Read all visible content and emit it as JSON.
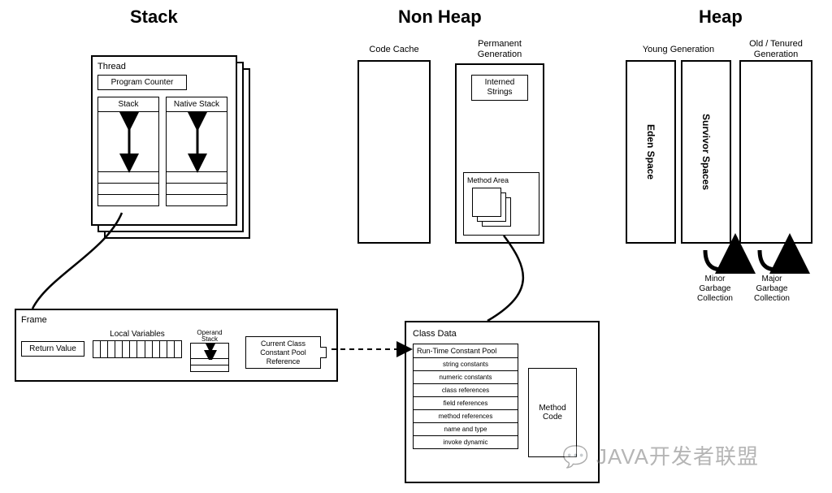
{
  "titles": {
    "stack": "Stack",
    "nonheap": "Non Heap",
    "heap": "Heap"
  },
  "stack": {
    "thread": "Thread",
    "programCounter": "Program Counter",
    "stackLabel": "Stack",
    "nativeStackLabel": "Native Stack"
  },
  "frame": {
    "title": "Frame",
    "returnValue": "Return Value",
    "localVariables": "Local Variables",
    "operandStack": "Operand\nStack",
    "currentClass": "Current Class\nConstant Pool\nReference"
  },
  "nonheap": {
    "codeCache": "Code Cache",
    "permGen": "Permanent\nGeneration",
    "internedStrings": "Interned\nStrings",
    "methodArea": "Method Area"
  },
  "classData": {
    "title": "Class Data",
    "runtimePool": "Run-Time Constant Pool",
    "items": [
      "string constants",
      "numeric constants",
      "class references",
      "field references",
      "method references",
      "name and type",
      "invoke dynamic"
    ],
    "methodCode": "Method\nCode"
  },
  "heap": {
    "youngGen": "Young Generation",
    "oldGen": "Old / Tenured\nGeneration",
    "eden": "Eden Space",
    "survivor": "Survivor Spaces",
    "minorGC": "Minor\nGarbage\nCollection",
    "majorGC": "Major\nGarbage\nCollection"
  },
  "watermark": "JAVA开发者联盟",
  "style": {
    "bg": "#ffffff",
    "line": "#000000",
    "titleSize": 22,
    "labelSize": 11,
    "smallLabelSize": 10
  }
}
